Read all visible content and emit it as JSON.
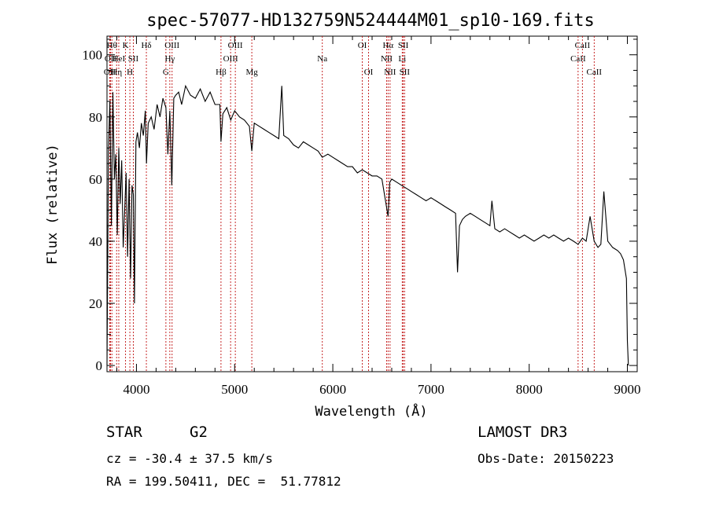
{
  "chart_data": {
    "type": "line",
    "title": "spec-57077-HD132759N524444M01_sp10-169.fits",
    "xlabel": "Wavelength (Å)",
    "ylabel": "Flux (relative)",
    "xlim": [
      3700,
      9100
    ],
    "ylim": [
      -2,
      106
    ],
    "xticks": [
      4000,
      5000,
      6000,
      7000,
      8000,
      9000
    ],
    "yticks": [
      0,
      20,
      40,
      60,
      80,
      100
    ],
    "series": [
      {
        "name": "flux",
        "x": [
          3700,
          3715,
          3730,
          3745,
          3760,
          3775,
          3790,
          3805,
          3820,
          3835,
          3850,
          3865,
          3880,
          3895,
          3910,
          3925,
          3940,
          3955,
          3968,
          3980,
          3995,
          4010,
          4030,
          4050,
          4070,
          4090,
          4102,
          4120,
          4150,
          4180,
          4210,
          4240,
          4270,
          4300,
          4320,
          4340,
          4360,
          4380,
          4400,
          4430,
          4460,
          4500,
          4550,
          4600,
          4650,
          4700,
          4750,
          4800,
          4850,
          4861,
          4880,
          4920,
          4960,
          5000,
          5050,
          5100,
          5150,
          5175,
          5200,
          5250,
          5300,
          5350,
          5400,
          5450,
          5480,
          5500,
          5550,
          5600,
          5650,
          5700,
          5750,
          5800,
          5850,
          5893,
          5950,
          6000,
          6050,
          6100,
          6150,
          6200,
          6250,
          6300,
          6350,
          6400,
          6450,
          6500,
          6563,
          6580,
          6600,
          6650,
          6700,
          6750,
          6800,
          6850,
          6900,
          6950,
          7000,
          7050,
          7100,
          7150,
          7200,
          7250,
          7270,
          7290,
          7320,
          7350,
          7400,
          7450,
          7500,
          7550,
          7600,
          7620,
          7650,
          7700,
          7750,
          7800,
          7850,
          7900,
          7950,
          8000,
          8050,
          8100,
          8150,
          8200,
          8250,
          8300,
          8350,
          8400,
          8450,
          8498,
          8542,
          8580,
          8620,
          8662,
          8700,
          8730,
          8760,
          8800,
          8850,
          8900,
          8930,
          8960,
          8990,
          9000,
          9010
        ],
        "values": [
          0,
          70,
          85,
          45,
          88,
          60,
          68,
          42,
          70,
          52,
          66,
          38,
          50,
          62,
          35,
          60,
          28,
          58,
          55,
          20,
          72,
          75,
          70,
          78,
          74,
          82,
          65,
          78,
          80,
          76,
          84,
          80,
          86,
          83,
          68,
          82,
          58,
          86,
          87,
          88,
          84,
          90,
          87,
          86,
          89,
          85,
          88,
          84,
          84,
          72,
          81,
          83,
          79,
          82,
          80,
          79,
          77,
          69,
          78,
          77,
          76,
          75,
          74,
          73,
          90,
          74,
          73,
          71,
          70,
          72,
          71,
          70,
          69,
          67,
          68,
          67,
          66,
          65,
          64,
          64,
          62,
          63,
          62,
          61,
          61,
          60,
          48,
          59,
          60,
          59,
          58,
          57,
          56,
          55,
          54,
          53,
          54,
          53,
          52,
          51,
          50,
          49,
          30,
          45,
          47,
          48,
          49,
          48,
          47,
          46,
          45,
          53,
          44,
          43,
          44,
          43,
          42,
          41,
          42,
          41,
          40,
          41,
          42,
          41,
          42,
          41,
          40,
          41,
          40,
          39,
          41,
          40,
          48,
          40,
          38,
          39,
          56,
          40,
          38,
          37,
          36,
          34,
          28,
          8,
          0
        ]
      }
    ],
    "lines": [
      {
        "wave": 3728,
        "row": 2,
        "label": "OII"
      },
      {
        "wave": 3736,
        "row": 1,
        "label": "OII"
      },
      {
        "wave": 3750,
        "row": 0,
        "label": "Hθ"
      },
      {
        "wave": 3798,
        "row": 2,
        "label": "Hη"
      },
      {
        "wave": 3820,
        "row": 1,
        "label": "HeI"
      },
      {
        "wave": 3889,
        "row": 0,
        "label": "K"
      },
      {
        "wave": 3933,
        "row": 2,
        "label": "H"
      },
      {
        "wave": 3968,
        "row": 1,
        "label": "SII"
      },
      {
        "wave": 4101,
        "row": 0,
        "label": "Hδ"
      },
      {
        "wave": 4300,
        "row": 2,
        "label": "G"
      },
      {
        "wave": 4340,
        "row": 1,
        "label": "Hγ"
      },
      {
        "wave": 4363,
        "row": 0,
        "label": "OIII"
      },
      {
        "wave": 4861,
        "row": 2,
        "label": "Hβ"
      },
      {
        "wave": 4959,
        "row": 1,
        "label": "OIII"
      },
      {
        "wave": 5007,
        "row": 0,
        "label": "OIII"
      },
      {
        "wave": 5175,
        "row": 2,
        "label": "Mg"
      },
      {
        "wave": 5893,
        "row": 1,
        "label": "Na"
      },
      {
        "wave": 6300,
        "row": 0,
        "label": "OI"
      },
      {
        "wave": 6364,
        "row": 2,
        "label": "OI"
      },
      {
        "wave": 6548,
        "row": 1,
        "label": "NII"
      },
      {
        "wave": 6563,
        "row": 0,
        "label": "Hα"
      },
      {
        "wave": 6583,
        "row": 2,
        "label": "NII"
      },
      {
        "wave": 6707,
        "row": 1,
        "label": "Li"
      },
      {
        "wave": 6717,
        "row": 0,
        "label": "SII"
      },
      {
        "wave": 6731,
        "row": 2,
        "label": "SII"
      },
      {
        "wave": 8498,
        "row": 1,
        "label": "CaII"
      },
      {
        "wave": 8542,
        "row": 0,
        "label": "CaII"
      },
      {
        "wave": 8662,
        "row": 2,
        "label": "CaII"
      }
    ],
    "grid": false
  },
  "footer": {
    "object_type": "STAR",
    "subclass": "G2",
    "survey": "LAMOST DR3",
    "redshift": "cz = -30.4 ± 37.5 km/s",
    "obs_date": "Obs-Date: 20150223",
    "coords": "RA = 199.50411, DEC =  51.77812"
  },
  "colors": {
    "line_marker": "#c01010",
    "spectrum": "#000000",
    "frame": "#000000"
  }
}
